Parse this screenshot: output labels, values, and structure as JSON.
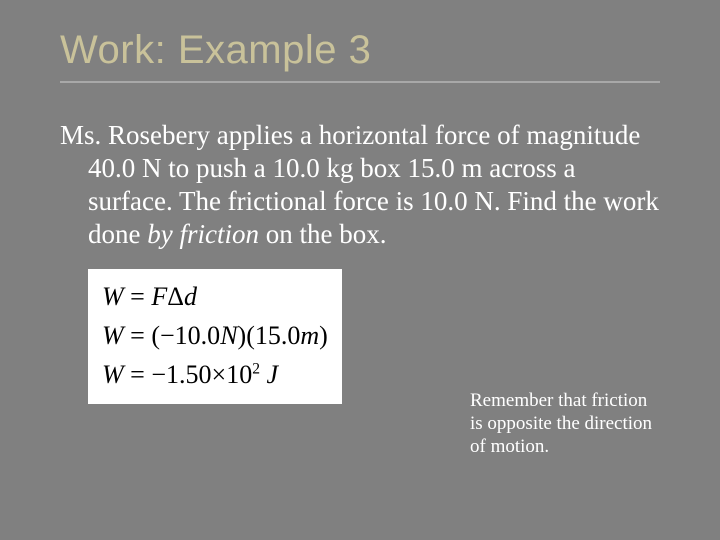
{
  "slide": {
    "title": "Work: Example 3",
    "title_color": "#c9c29a",
    "title_font": "Impact",
    "title_fontsize": 40,
    "underline_color": "#a8a8a8",
    "background_color": "#808080",
    "body_color": "#ffffff",
    "body_fontsize": 27,
    "problem_pre": "Ms. Rosebery applies a horizontal force of magnitude 40.0 N to push a 10.0 kg box 15.0 m across a surface.  The frictional force is 10.0 N.  Find the work done ",
    "problem_em": "by friction",
    "problem_post": " on the box.",
    "equations": {
      "background": "#ffffff",
      "text_color": "#000000",
      "fontsize": 26,
      "line1": {
        "lhs": "W",
        "eq": " = ",
        "rhs_F": "F",
        "rhs_delta": "Δ",
        "rhs_d": "d"
      },
      "line2": {
        "lhs": "W",
        "eq": " = ",
        "open": "(",
        "force_val": "−10.0",
        "force_unit": "N",
        "close_open": ")(",
        "dist_val": "15.0",
        "dist_unit": "m",
        "close": ")"
      },
      "line3": {
        "lhs": "W",
        "eq": " = ",
        "val": "−1.50",
        "times": "×",
        "ten": "10",
        "exp": "2",
        "unit": " J"
      }
    },
    "note": "Remember that friction is opposite the direction of motion.",
    "note_fontsize": 19
  }
}
